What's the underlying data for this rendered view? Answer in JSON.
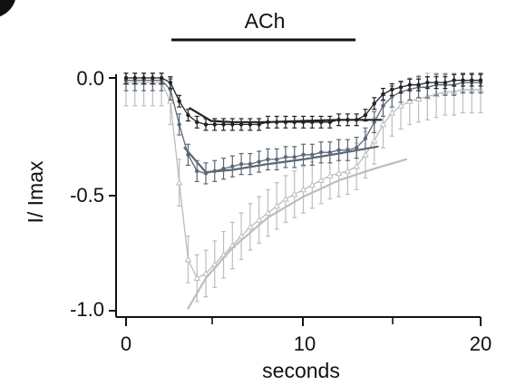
{
  "chart_data": {
    "type": "line",
    "title": "",
    "xlabel": "seconds",
    "ylabel": "I/ Imax",
    "xlim": [
      0,
      20
    ],
    "ylim": [
      -1.0,
      0.0
    ],
    "x_ticks": [
      0,
      10,
      20
    ],
    "x_tick_labels": [
      "0",
      "10",
      "20"
    ],
    "y_ticks": [
      0.0,
      -0.5,
      -1.0
    ],
    "y_tick_labels": [
      "0.0",
      "-0.5",
      "-1.0"
    ],
    "grid": false,
    "legend": "none",
    "application_bar": {
      "label": "ACh",
      "x_start": 2.5,
      "x_end": 12.7
    },
    "series": [
      {
        "color": "#222222",
        "marker": "filled-circle",
        "x": [
          0.0,
          0.5,
          1.0,
          1.5,
          2.0,
          2.5,
          3.0,
          3.5,
          4.0,
          4.5,
          5.0,
          5.5,
          6.0,
          6.5,
          7.0,
          7.5,
          8.0,
          8.5,
          9.0,
          9.5,
          10.0,
          10.5,
          11.0,
          11.5,
          12.0,
          12.5,
          13.0,
          13.5,
          14.0,
          14.5,
          15.0,
          15.5,
          16.0,
          16.5,
          17.0,
          17.5,
          18.0,
          18.5,
          19.0,
          19.5,
          20.0
        ],
        "y": [
          0.0,
          0.0,
          0.0,
          0.0,
          0.0,
          -0.02,
          -0.1,
          -0.16,
          -0.19,
          -0.2,
          -0.2,
          -0.2,
          -0.2,
          -0.2,
          -0.2,
          -0.2,
          -0.19,
          -0.19,
          -0.19,
          -0.19,
          -0.19,
          -0.19,
          -0.19,
          -0.19,
          -0.18,
          -0.18,
          -0.18,
          -0.16,
          -0.11,
          -0.07,
          -0.05,
          -0.04,
          -0.03,
          -0.03,
          -0.02,
          -0.02,
          -0.02,
          -0.01,
          -0.01,
          -0.01,
          -0.01
        ],
        "error": 0.025
      },
      {
        "color": "#5c6876",
        "marker": "filled-circle",
        "x": [
          0.0,
          0.5,
          1.0,
          1.5,
          2.0,
          2.5,
          3.0,
          3.5,
          4.0,
          4.5,
          5.0,
          5.5,
          6.0,
          6.5,
          7.0,
          7.5,
          8.0,
          8.5,
          9.0,
          9.5,
          10.0,
          10.5,
          11.0,
          11.5,
          12.0,
          12.5,
          13.0,
          13.5,
          14.0,
          14.5,
          15.0,
          15.5,
          16.0,
          16.5,
          17.0,
          17.5,
          18.0,
          18.5,
          19.0,
          19.5,
          20.0
        ],
        "y": [
          -0.01,
          -0.01,
          -0.01,
          -0.01,
          -0.01,
          -0.05,
          -0.2,
          -0.33,
          -0.4,
          -0.41,
          -0.4,
          -0.39,
          -0.38,
          -0.37,
          -0.37,
          -0.36,
          -0.35,
          -0.35,
          -0.34,
          -0.34,
          -0.33,
          -0.33,
          -0.32,
          -0.32,
          -0.31,
          -0.31,
          -0.3,
          -0.26,
          -0.19,
          -0.12,
          -0.08,
          -0.06,
          -0.05,
          -0.04,
          -0.04,
          -0.03,
          -0.03,
          -0.03,
          -0.02,
          -0.02,
          -0.02
        ],
        "error": 0.045
      },
      {
        "color": "#bdbdbd",
        "marker": "open-triangle",
        "x": [
          0.0,
          0.5,
          1.0,
          1.5,
          2.0,
          2.5,
          3.0,
          3.5,
          4.0,
          4.5,
          5.0,
          5.5,
          6.0,
          6.5,
          7.0,
          7.5,
          8.0,
          8.5,
          9.0,
          9.5,
          10.0,
          10.5,
          11.0,
          11.5,
          12.0,
          12.5,
          13.0,
          13.5,
          14.0,
          14.5,
          15.0,
          15.5,
          16.0,
          16.5,
          17.0,
          17.5,
          18.0,
          18.5,
          19.0,
          19.5,
          20.0
        ],
        "y": [
          -0.02,
          -0.02,
          -0.02,
          -0.02,
          -0.02,
          -0.1,
          -0.45,
          -0.78,
          -0.86,
          -0.84,
          -0.8,
          -0.76,
          -0.72,
          -0.68,
          -0.64,
          -0.61,
          -0.58,
          -0.55,
          -0.52,
          -0.5,
          -0.48,
          -0.46,
          -0.44,
          -0.42,
          -0.41,
          -0.4,
          -0.38,
          -0.33,
          -0.27,
          -0.2,
          -0.15,
          -0.12,
          -0.1,
          -0.09,
          -0.08,
          -0.07,
          -0.06,
          -0.06,
          -0.05,
          -0.05,
          -0.05
        ],
        "error": 0.1
      }
    ],
    "fits": [
      {
        "color": "#222222",
        "x": [
          3.6,
          4.8,
          6.0,
          8.0,
          10.0,
          12.0,
          14.4
        ],
        "y": [
          -0.13,
          -0.185,
          -0.19,
          -0.19,
          -0.185,
          -0.18,
          -0.18
        ]
      },
      {
        "color": "#5c6876",
        "x": [
          3.3,
          4.5,
          6.0,
          8.0,
          10.0,
          12.0,
          14.2
        ],
        "y": [
          -0.3,
          -0.405,
          -0.395,
          -0.37,
          -0.35,
          -0.325,
          -0.295
        ]
      },
      {
        "color": "#bdbdbd",
        "x": [
          3.5,
          4.5,
          6.0,
          8.0,
          10.0,
          12.0,
          14.0,
          15.8
        ],
        "y": [
          -0.99,
          -0.86,
          -0.73,
          -0.6,
          -0.51,
          -0.44,
          -0.39,
          -0.35
        ]
      }
    ]
  }
}
